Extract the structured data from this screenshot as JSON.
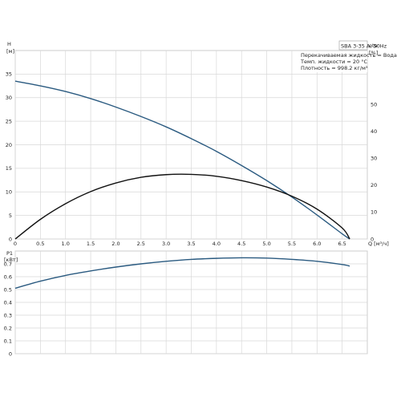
{
  "chart_data": [
    {
      "type": "line",
      "name_box": "SBA 3-35 A, 50Hz",
      "legend_lines": [
        "Перекачиваемая жидкость = Вода",
        "Темп. жидкости = 20 °C",
        "Плотность = 998.2 кг/м³"
      ],
      "xlabel_unit": "Q [м³/ч]",
      "ylabel_left_top": "H",
      "ylabel_left_unit": "[м]",
      "ylabel_right_top": "eta",
      "ylabel_right_unit": "[%]",
      "xlim": [
        0,
        7
      ],
      "x_ticks": [
        "0",
        "0.5",
        "1.0",
        "1.5",
        "2.0",
        "2.5",
        "3.0",
        "3.5",
        "4.0",
        "4.5",
        "5.0",
        "5.5",
        "6.0",
        "6.5"
      ],
      "x_tick_values": [
        0,
        0.5,
        1,
        1.5,
        2,
        2.5,
        3,
        3.5,
        4,
        4.5,
        5,
        5.5,
        6,
        6.5
      ],
      "ylim_left": [
        0,
        40
      ],
      "y_left_ticks": [
        "0",
        "5",
        "10",
        "15",
        "20",
        "25",
        "30",
        "35"
      ],
      "y_left_tick_values": [
        0,
        5,
        10,
        15,
        20,
        25,
        30,
        35
      ],
      "ylim_right": [
        0,
        70
      ],
      "y_right_ticks": [
        "0",
        "10",
        "20",
        "30",
        "40",
        "50"
      ],
      "y_right_tick_values": [
        0,
        10,
        20,
        30,
        40,
        50
      ],
      "grid": true,
      "series": [
        {
          "axis": "left",
          "color": "#2a5a80",
          "x": [
            0,
            0.5,
            1.0,
            1.5,
            2.0,
            2.5,
            3.0,
            3.5,
            4.0,
            4.5,
            5.0,
            5.5,
            6.0,
            6.5,
            6.65
          ],
          "y": [
            33.5,
            32.5,
            31.3,
            29.8,
            28.0,
            26.0,
            23.8,
            21.3,
            18.6,
            15.6,
            12.4,
            8.9,
            5.1,
            1.1,
            0
          ]
        },
        {
          "axis": "right",
          "color": "#111111",
          "x": [
            0,
            0.5,
            1.0,
            1.5,
            2.0,
            2.5,
            3.0,
            3.5,
            4.0,
            4.5,
            5.0,
            5.5,
            6.0,
            6.5,
            6.65
          ],
          "y": [
            0,
            7.3,
            13.1,
            17.6,
            20.8,
            22.9,
            23.9,
            24.0,
            23.3,
            21.7,
            19.3,
            15.9,
            11.1,
            4.1,
            0
          ]
        }
      ]
    },
    {
      "type": "line",
      "ylabel_top": "P1",
      "ylabel_unit": "[кВт]",
      "xlim": [
        0,
        7
      ],
      "ylim": [
        0,
        0.8
      ],
      "y_ticks": [
        "0",
        "0.1",
        "0.2",
        "0.3",
        "0.4",
        "0.5",
        "0.6",
        "0.7"
      ],
      "y_tick_values": [
        0,
        0.1,
        0.2,
        0.3,
        0.4,
        0.5,
        0.6,
        0.7
      ],
      "grid": true,
      "series": [
        {
          "color": "#2a5a80",
          "x": [
            0,
            0.5,
            1.0,
            1.5,
            2.0,
            2.5,
            3.0,
            3.5,
            4.0,
            4.5,
            5.0,
            5.5,
            6.0,
            6.5,
            6.65
          ],
          "y": [
            0.51,
            0.565,
            0.61,
            0.645,
            0.675,
            0.7,
            0.72,
            0.735,
            0.743,
            0.747,
            0.745,
            0.735,
            0.72,
            0.695,
            0.683
          ]
        }
      ]
    }
  ]
}
